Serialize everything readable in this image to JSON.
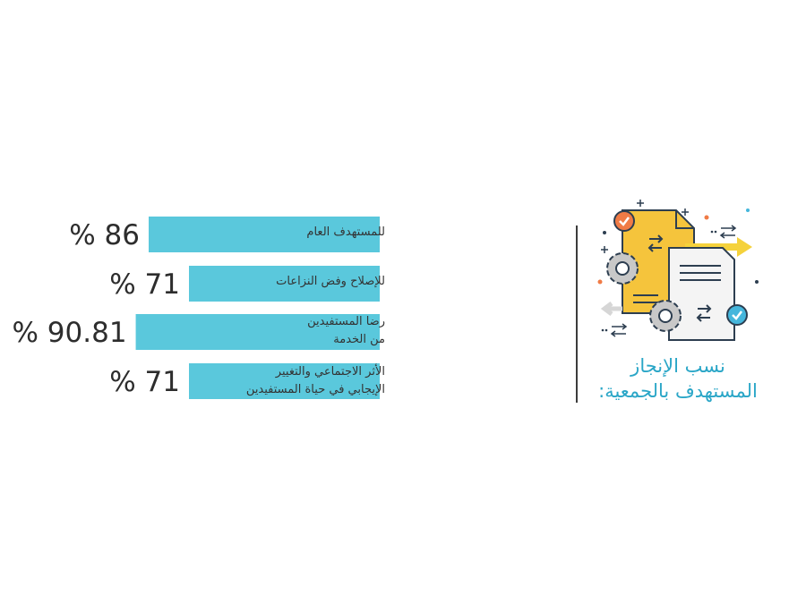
{
  "section": {
    "title_line1": "نسب الإنجاز",
    "title_line2": "المستهدف بالجمعية:"
  },
  "colors": {
    "bar": "#5ac8dc",
    "title": "#2aa6c7",
    "divider": "#3c3c3c"
  },
  "chart_data": {
    "type": "bar",
    "orientation": "horizontal",
    "categories": [
      "للمستهدف العام",
      "للإصلاح وفض النزاعات",
      "رضا المستفيدين\nمن الخدمة",
      "الأثر الاجتماعي والتغيير\nالإيجابي في حياة المستفيدين"
    ],
    "values": [
      86,
      71,
      90.81,
      71
    ],
    "value_labels": [
      "% 86",
      "% 71",
      "% 90.81",
      "% 71"
    ],
    "unit": "%",
    "grid": false,
    "legend": "none"
  },
  "icons": [
    "document-gears-icon",
    "check-badge-icon",
    "gear-icon",
    "exchange-arrows-icon",
    "arrow-right-icon"
  ]
}
